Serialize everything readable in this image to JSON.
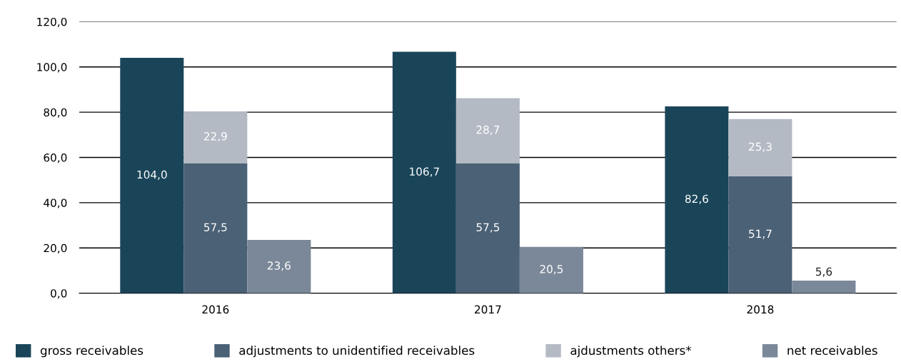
{
  "chart_data": {
    "type": "bar",
    "categories": [
      "2016",
      "2017",
      "2018"
    ],
    "series": [
      {
        "name": "gross receivables",
        "color": "#1a4559",
        "values": [
          104.0,
          106.7,
          82.6
        ],
        "value_labels": [
          "104,0",
          "106,7",
          "82,6"
        ]
      },
      {
        "name": "adjustments to unidentified receivables",
        "color": "#4b6175",
        "values": [
          57.5,
          57.5,
          51.7
        ],
        "base": [
          0,
          0,
          0
        ],
        "value_labels": [
          "57,5",
          "57,5",
          "51,7"
        ]
      },
      {
        "name": "ajdustments others*",
        "color": "#b4bac3",
        "values": [
          22.9,
          28.7,
          25.3
        ],
        "base": [
          57.5,
          57.5,
          51.7
        ],
        "value_labels": [
          "22,9",
          "28,7",
          "25,3"
        ]
      },
      {
        "name": "net receivables",
        "color": "#7b8899",
        "values": [
          23.6,
          20.5,
          5.6
        ],
        "value_labels": [
          "23,6",
          "20,5",
          "5,6"
        ]
      }
    ],
    "ylim": [
      0,
      120
    ],
    "yticks": [
      {
        "value": 0,
        "label": "0,0"
      },
      {
        "value": 20,
        "label": "20,0"
      },
      {
        "value": 40,
        "label": "40,0"
      },
      {
        "value": 60,
        "label": "60,0"
      },
      {
        "value": 80,
        "label": "80,0"
      },
      {
        "value": 100,
        "label": "100,0"
      },
      {
        "value": 120,
        "label": "120,0"
      }
    ],
    "grid": "y",
    "legend": "bottom"
  }
}
